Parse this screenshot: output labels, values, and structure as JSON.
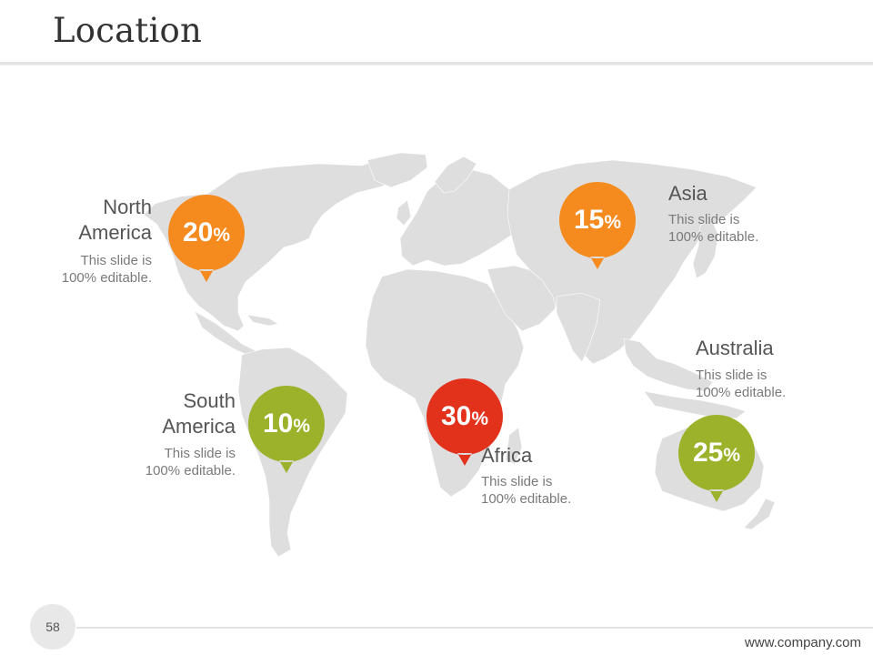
{
  "slide": {
    "title": "Location",
    "page_number": "58",
    "footer_url": "www.company.com"
  },
  "colors": {
    "orange": "#f58a1f",
    "green": "#9bb22a",
    "red": "#e3321c",
    "map": "#dedede"
  },
  "regions": [
    {
      "key": "north_america",
      "name_line1": "North",
      "name_line2": "America",
      "percent": "20",
      "symbol": "%",
      "desc_line1": "This slide is",
      "desc_line2": "100% editable.",
      "color": "orange"
    },
    {
      "key": "south_america",
      "name_line1": "South",
      "name_line2": "America",
      "percent": "10",
      "symbol": "%",
      "desc_line1": "This slide is",
      "desc_line2": "100% editable.",
      "color": "green"
    },
    {
      "key": "africa",
      "name_line1": "Africa",
      "percent": "30",
      "symbol": "%",
      "desc_line1": "This slide is",
      "desc_line2": "100% editable.",
      "color": "red"
    },
    {
      "key": "asia",
      "name_line1": "Asia",
      "percent": "15",
      "symbol": "%",
      "desc_line1": "This slide is",
      "desc_line2": "100% editable.",
      "color": "orange"
    },
    {
      "key": "australia",
      "name_line1": "Australia",
      "percent": "25",
      "symbol": "%",
      "desc_line1": "This slide is",
      "desc_line2": "100% editable.",
      "color": "green"
    }
  ]
}
